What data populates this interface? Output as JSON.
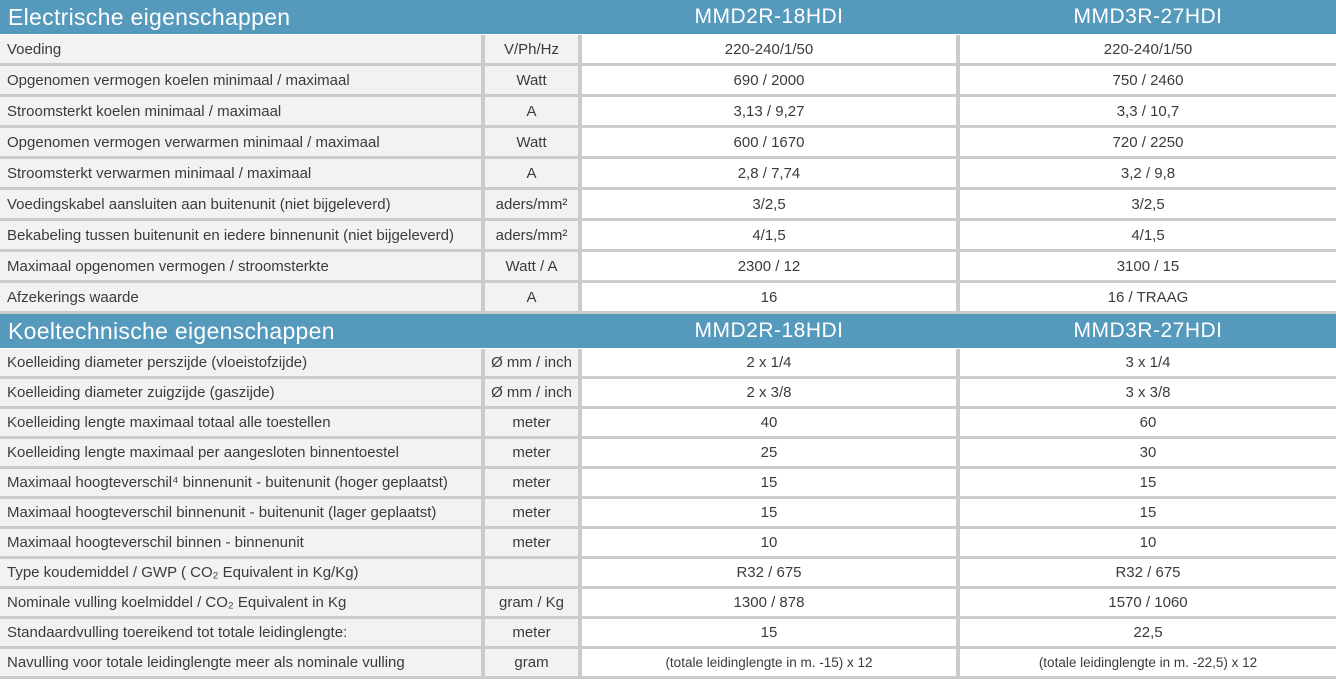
{
  "theme": {
    "header_bg": "#5599bd",
    "header_text": "#ffffff",
    "label_cell_bg": "#f2f2f2",
    "value_cell_bg": "#ffffff",
    "separator_color": "#cacbcc",
    "body_text_color": "#3b3b3b"
  },
  "sections": [
    {
      "title": "Electrische eigenschappen",
      "models": [
        "MMD2R-18HDI",
        "MMD3R-27HDI"
      ],
      "rows": [
        {
          "label": "Voeding",
          "unit": "V/Ph/Hz",
          "values": [
            "220-240/1/50",
            "220-240/1/50"
          ]
        },
        {
          "label": "Opgenomen vermogen koelen minimaal / maximaal",
          "unit": "Watt",
          "values": [
            "690 / 2000",
            "750 / 2460"
          ]
        },
        {
          "label": "Stroomsterkt koelen minimaal / maximaal",
          "unit": "A",
          "values": [
            "3,13 / 9,27",
            "3,3 / 10,7"
          ]
        },
        {
          "label": "Opgenomen vermogen verwarmen minimaal / maximaal",
          "unit": "Watt",
          "values": [
            "600 / 1670",
            "720 / 2250"
          ]
        },
        {
          "label": "Stroomsterkt verwarmen minimaal / maximaal",
          "unit": "A",
          "values": [
            "2,8 / 7,74",
            "3,2 / 9,8"
          ]
        },
        {
          "label": "Voedingskabel aansluiten aan buitenunit (niet bijgeleverd)",
          "unit": "aders/mm²",
          "values": [
            "3/2,5",
            "3/2,5"
          ]
        },
        {
          "label": "Bekabeling tussen buitenunit en iedere binnenunit (niet bijgeleverd)",
          "unit": "aders/mm²",
          "values": [
            "4/1,5",
            "4/1,5"
          ]
        },
        {
          "label": "Maximaal opgenomen vermogen / stroomsterkte",
          "unit": "Watt / A",
          "values": [
            "2300 / 12",
            "3100 / 15"
          ]
        },
        {
          "label": "Afzekerings waarde",
          "unit": "A",
          "values": [
            "16",
            "16 / TRAAG"
          ]
        }
      ]
    },
    {
      "title": "Koeltechnische eigenschappen",
      "models": [
        "MMD2R-18HDI",
        "MMD3R-27HDI"
      ],
      "rows": [
        {
          "label": "Koelleiding diameter perszijde (vloeistofzijde)",
          "unit": "Ø mm / inch",
          "values": [
            "2 x 1/4",
            "3 x 1/4"
          ]
        },
        {
          "label": "Koelleiding diameter zuigzijde (gaszijde)",
          "unit": "Ø mm / inch",
          "values": [
            "2 x 3/8",
            "3 x 3/8"
          ]
        },
        {
          "label": "Koelleiding lengte maximaal totaal alle toestellen",
          "unit": "meter",
          "values": [
            "40",
            "60"
          ]
        },
        {
          "label": "Koelleiding lengte maximaal per aangesloten binnentoestel",
          "unit": "meter",
          "values": [
            "25",
            "30"
          ]
        },
        {
          "label": "Maximaal hoogteverschil⁴ binnenunit - buitenunit (hoger geplaatst)",
          "unit": "meter",
          "values": [
            "15",
            "15"
          ]
        },
        {
          "label": "Maximaal hoogteverschil binnenunit - buitenunit (lager geplaatst)",
          "unit": "meter",
          "values": [
            "15",
            "15"
          ]
        },
        {
          "label": "Maximaal hoogteverschil binnen - binnenunit",
          "unit": "meter",
          "values": [
            "10",
            "10"
          ]
        },
        {
          "label": "Type koudemiddel / GWP ( CO₂ Equivalent in Kg/Kg)",
          "unit": "",
          "values": [
            "R32 / 675",
            "R32 / 675"
          ]
        },
        {
          "label": "Nominale vulling koelmiddel / CO₂ Equivalent in Kg",
          "unit": "gram / Kg",
          "values": [
            "1300 / 878",
            "1570 / 1060"
          ]
        },
        {
          "label": "Standaardvulling toereikend tot totale leidinglengte:",
          "unit": "meter",
          "values": [
            "15",
            "22,5"
          ]
        },
        {
          "label": "Navulling voor totale leidinglengte meer als nominale vulling",
          "unit": "gram",
          "values": [
            "(totale leidinglengte in m. -15) x 12",
            "(totale leidinglengte in m. -22,5) x 12"
          ]
        }
      ]
    }
  ]
}
